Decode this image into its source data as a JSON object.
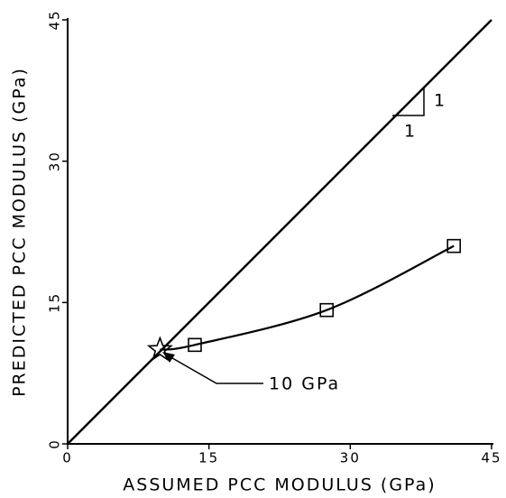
{
  "chart_data": {
    "type": "line",
    "xlabel": "ASSUMED PCC MODULUS (GPa)",
    "ylabel": "PREDICTED PCC MODULUS (GPa)",
    "xlim": [
      0,
      45
    ],
    "ylim": [
      0,
      45
    ],
    "xticks": [
      0,
      15,
      30,
      45
    ],
    "yticks": [
      0,
      15,
      30,
      45
    ],
    "series": [
      {
        "color": "#000000",
        "x": [
          0,
          45
        ],
        "values": [
          0,
          45
        ]
      },
      {
        "color": "#000000",
        "x": [
          9.8,
          13.5,
          27.5,
          41
        ],
        "values": [
          10,
          10.5,
          14.2,
          21
        ],
        "markers": [
          "star",
          "square",
          "square",
          "square"
        ]
      }
    ],
    "annotation": "10 GPa",
    "slope_labels": [
      "1",
      "1"
    ]
  }
}
